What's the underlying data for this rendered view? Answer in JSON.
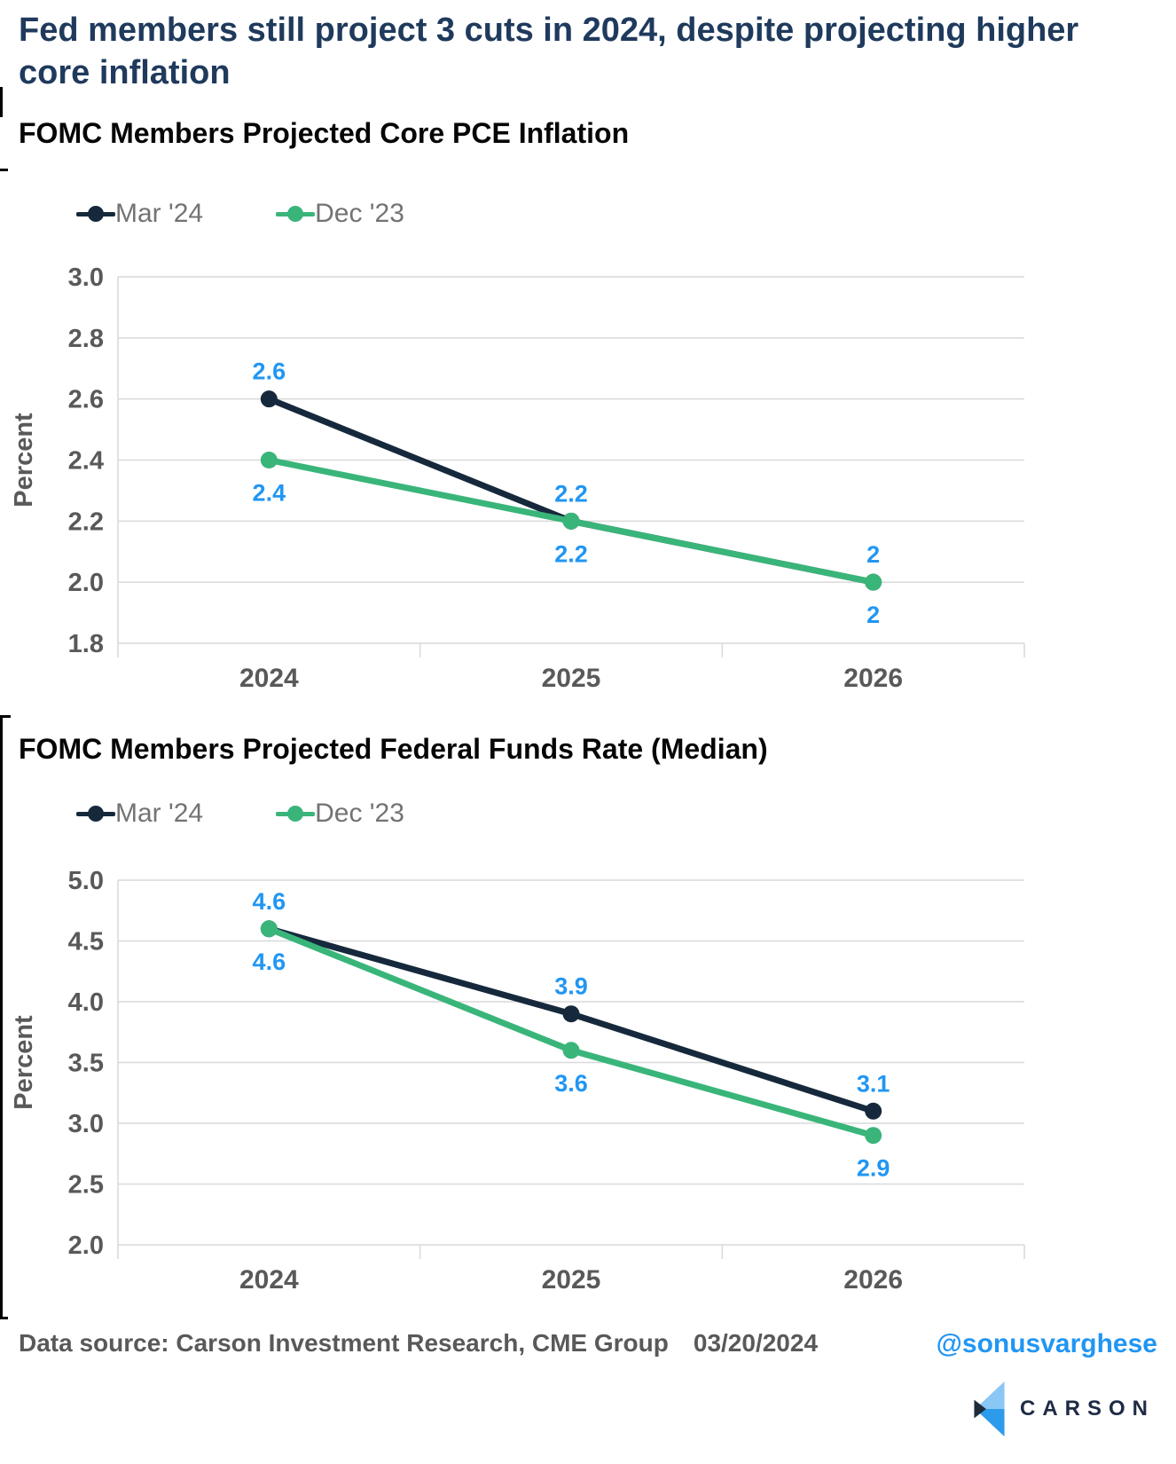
{
  "header": {
    "title": "Fed members still project 3 cuts in 2024, despite projecting higher core inflation"
  },
  "colors": {
    "title_navy": "#1F3A5C",
    "series_navy": "#16293C",
    "series_green": "#3AB57A",
    "data_label_blue": "#2196F3",
    "axis_text_gray": "#595959",
    "legend_text_gray": "#737373",
    "gridline_gray": "#D9D9D9",
    "brand_navy": "#1F2B45",
    "brand_light_blue": "#8AC7F4",
    "brand_mid_blue": "#2D9BEB"
  },
  "chart_data": [
    {
      "type": "line",
      "title": "FOMC Members Projected Core PCE Inflation",
      "ylabel": "Percent",
      "xlabel": "",
      "categories": [
        "2024",
        "2025",
        "2026"
      ],
      "yticks": [
        "3.0",
        "2.8",
        "2.6",
        "2.4",
        "2.2",
        "2.0",
        "1.8"
      ],
      "ylim": [
        1.8,
        3.0
      ],
      "grid": "horizontal",
      "legend_position": "top-left",
      "series": [
        {
          "name": "Mar '24",
          "color": "#16293C",
          "values": [
            2.6,
            2.2,
            2
          ],
          "labels": [
            "2.6",
            "2.2",
            "2"
          ],
          "label_side": "above"
        },
        {
          "name": "Dec '23",
          "color": "#3AB57A",
          "values": [
            2.4,
            2.2,
            2
          ],
          "labels": [
            "2.4",
            "2.2",
            "2"
          ],
          "label_side": "below"
        }
      ]
    },
    {
      "type": "line",
      "title": "FOMC Members Projected Federal Funds Rate (Median)",
      "ylabel": "Percent",
      "xlabel": "",
      "categories": [
        "2024",
        "2025",
        "2026"
      ],
      "yticks": [
        "5.0",
        "4.5",
        "4.0",
        "3.5",
        "3.0",
        "2.5",
        "2.0"
      ],
      "ylim": [
        2.0,
        5.0
      ],
      "grid": "horizontal",
      "legend_position": "top-left",
      "series": [
        {
          "name": "Mar '24",
          "color": "#16293C",
          "values": [
            4.6,
            3.9,
            3.1
          ],
          "labels": [
            "4.6",
            "3.9",
            "3.1"
          ],
          "label_side": "above"
        },
        {
          "name": "Dec '23",
          "color": "#3AB57A",
          "values": [
            4.6,
            3.6,
            2.9
          ],
          "labels": [
            "4.6",
            "3.6",
            "2.9"
          ],
          "label_side": "below"
        }
      ]
    }
  ],
  "footer": {
    "source_label": "Data source: Carson Investment Research, CME Group",
    "date": "03/20/2024",
    "handle": "@sonusvarghese"
  },
  "brand": {
    "name": "CARSON"
  }
}
